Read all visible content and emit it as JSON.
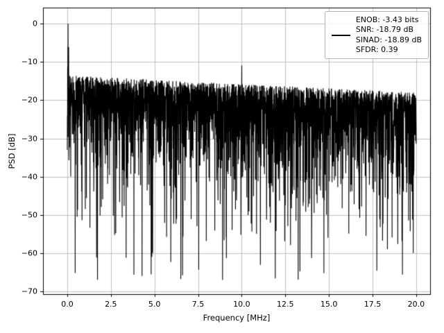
{
  "figure": {
    "background_color": "#ffffff",
    "frame_color": "#000000",
    "grid_color": "#b0b0b0",
    "grid_linewidth": 0.8
  },
  "chart_data": {
    "type": "line",
    "title": "",
    "xlabel": "Frequency [MHz]",
    "ylabel": "PSD [dB]",
    "xlim": [
      0,
      20
    ],
    "ylim": [
      -70,
      0
    ],
    "xticks": [
      0,
      2.5,
      5,
      7.5,
      10,
      12.5,
      15,
      17.5,
      20
    ],
    "xtick_labels": [
      "0.0",
      "2.5",
      "5.0",
      "7.5",
      "10.0",
      "12.5",
      "15.0",
      "17.5",
      "20.0"
    ],
    "yticks": [
      0,
      -10,
      -20,
      -30,
      -40,
      -50,
      -60,
      -70
    ],
    "ytick_labels": [
      "0",
      "−10",
      "−20",
      "−30",
      "−40",
      "−50",
      "−60",
      "−70"
    ],
    "grid": true,
    "legend_position": "upper right",
    "line_color": "#000000",
    "legend": {
      "entries": [
        "ENOB: -3.43 bits",
        "SNR: -18.79 dB",
        "SINAD: -18.89 dB",
        "SFDR: 0.39"
      ]
    },
    "metrics": {
      "enob_bits": -3.43,
      "snr_db": -18.79,
      "sinad_db": -18.89,
      "sfdr": 0.39
    },
    "series": [
      {
        "name": "PSD",
        "kind": "noisy-spectrum",
        "n_points": 3000,
        "fundamental_peak": {
          "x_mhz": 0.05,
          "y_db": 0
        },
        "fundamental_skirt_min_db": -37,
        "spur_peak": {
          "x_mhz": 10.0,
          "y_db": -10.9
        },
        "noise_floor": {
          "upper_envelope_start_db": -13.5,
          "upper_envelope_end_db": -18.0,
          "mean_db": -27,
          "spread_db": 8.5,
          "deep_null_min_db": -67,
          "deep_null_at_mhz": 8.9,
          "deep_null_probability": 0.013
        }
      }
    ]
  }
}
